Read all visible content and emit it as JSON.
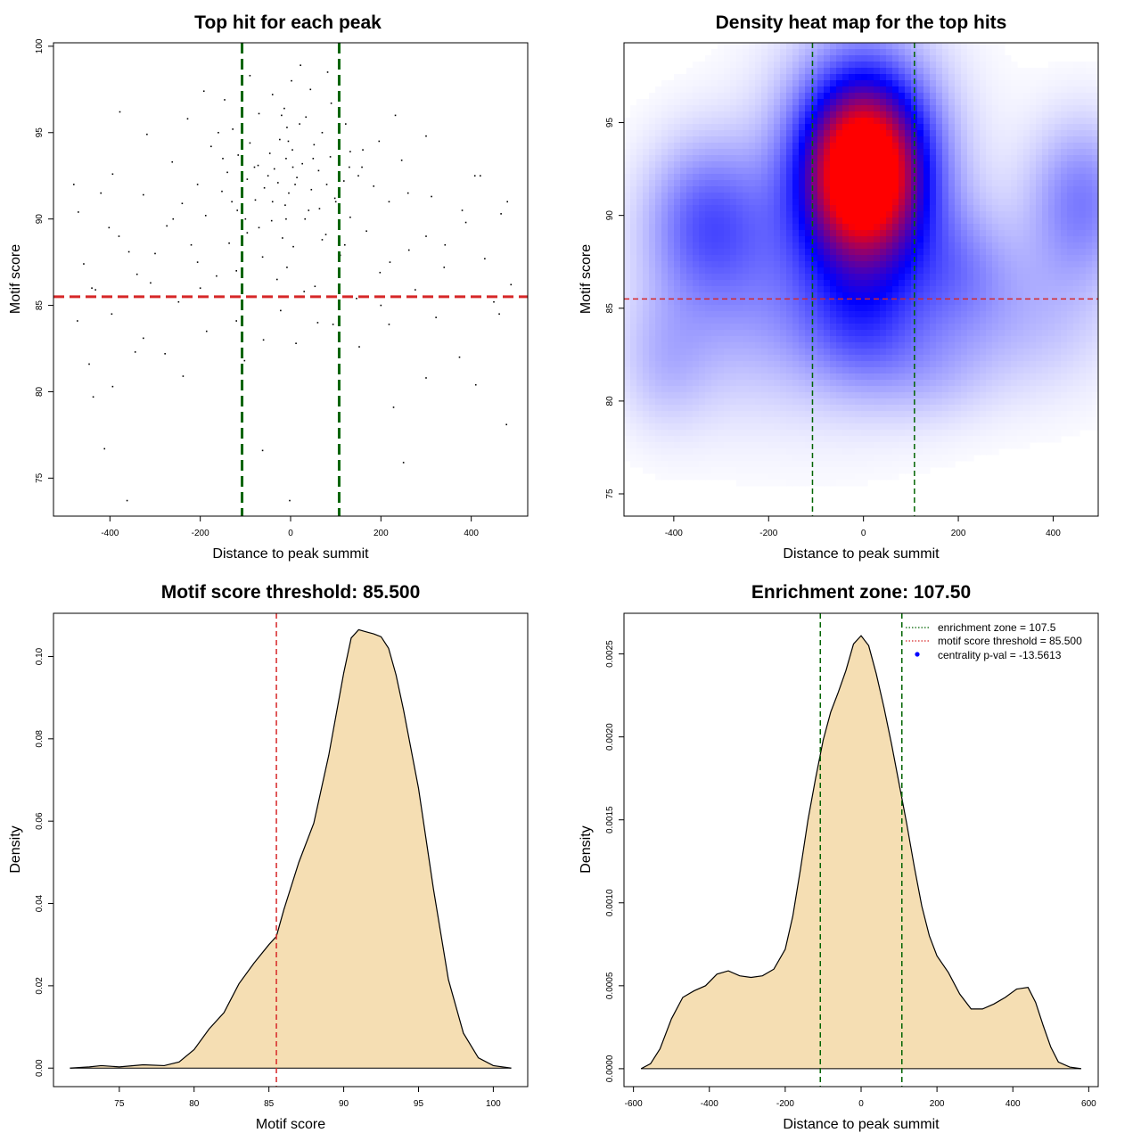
{
  "chart_data": [
    {
      "id": "scatter",
      "type": "scatter",
      "title": "Top hit for each peak",
      "xlabel": "Distance to peak summit",
      "ylabel": "Motif score",
      "xlim": [
        -525,
        525
      ],
      "ylim": [
        72.8,
        100.2
      ],
      "xticks": [
        -400,
        -200,
        0,
        200,
        400
      ],
      "yticks": [
        75,
        80,
        85,
        90,
        95,
        100
      ],
      "point_color": "#000000",
      "vlines": [
        -107.5,
        107.5
      ],
      "vline_color": "#006400",
      "hline": 85.5,
      "hline_color": "#d62728",
      "points": [
        [
          -362,
          73.7
        ],
        [
          -2,
          73.7
        ],
        [
          -412,
          76.7
        ],
        [
          -62,
          76.6
        ],
        [
          478,
          78.1
        ],
        [
          250,
          75.9
        ],
        [
          228,
          79.1
        ],
        [
          -437,
          79.7
        ],
        [
          -394,
          80.3
        ],
        [
          410,
          80.4
        ],
        [
          -238,
          80.9
        ],
        [
          300,
          80.8
        ],
        [
          -446,
          81.6
        ],
        [
          -278,
          82.2
        ],
        [
          152,
          82.6
        ],
        [
          -344,
          82.3
        ],
        [
          -102,
          81.8
        ],
        [
          374,
          82.0
        ],
        [
          -326,
          83.1
        ],
        [
          12,
          82.8
        ],
        [
          -186,
          83.5
        ],
        [
          218,
          83.9
        ],
        [
          -472,
          84.1
        ],
        [
          462,
          84.5
        ],
        [
          -396,
          84.5
        ],
        [
          -120,
          84.1
        ],
        [
          94,
          83.9
        ],
        [
          322,
          84.3
        ],
        [
          -22,
          84.7
        ],
        [
          -248,
          85.2
        ],
        [
          -432,
          85.9
        ],
        [
          146,
          85.4
        ],
        [
          276,
          85.9
        ],
        [
          -82,
          85.5
        ],
        [
          -310,
          86.3
        ],
        [
          54,
          86.1
        ],
        [
          488,
          86.2
        ],
        [
          -164,
          86.7
        ],
        [
          198,
          86.9
        ],
        [
          -8,
          87.2
        ],
        [
          -458,
          87.4
        ],
        [
          -206,
          87.5
        ],
        [
          430,
          87.7
        ],
        [
          -62,
          87.8
        ],
        [
          110,
          87.9
        ],
        [
          -358,
          88.1
        ],
        [
          262,
          88.2
        ],
        [
          6,
          88.4
        ],
        [
          -136,
          88.6
        ],
        [
          342,
          88.5
        ],
        [
          -18,
          88.9
        ],
        [
          78,
          89.1
        ],
        [
          -96,
          89.2
        ],
        [
          168,
          89.3
        ],
        [
          -402,
          89.5
        ],
        [
          -274,
          89.6
        ],
        [
          388,
          89.8
        ],
        [
          -42,
          89.9
        ],
        [
          32,
          90.0
        ],
        [
          -188,
          90.2
        ],
        [
          132,
          90.1
        ],
        [
          -470,
          90.4
        ],
        [
          466,
          90.3
        ],
        [
          -118,
          90.5
        ],
        [
          64,
          90.6
        ],
        [
          -12,
          90.8
        ],
        [
          -240,
          90.9
        ],
        [
          218,
          91.0
        ],
        [
          -78,
          91.1
        ],
        [
          98,
          91.2
        ],
        [
          -326,
          91.4
        ],
        [
          312,
          91.3
        ],
        [
          -4,
          91.5
        ],
        [
          -152,
          91.6
        ],
        [
          46,
          91.7
        ],
        [
          -58,
          91.8
        ],
        [
          184,
          91.9
        ],
        [
          -206,
          92.0
        ],
        [
          -28,
          92.1
        ],
        [
          118,
          92.2
        ],
        [
          -96,
          92.3
        ],
        [
          14,
          92.4
        ],
        [
          -394,
          92.6
        ],
        [
          408,
          92.5
        ],
        [
          -140,
          92.7
        ],
        [
          62,
          92.8
        ],
        [
          -36,
          92.9
        ],
        [
          158,
          93.0
        ],
        [
          -72,
          93.1
        ],
        [
          26,
          93.2
        ],
        [
          -262,
          93.3
        ],
        [
          246,
          93.4
        ],
        [
          -10,
          93.5
        ],
        [
          88,
          93.6
        ],
        [
          -116,
          93.7
        ],
        [
          -46,
          93.8
        ],
        [
          132,
          93.9
        ],
        [
          4,
          94.0
        ],
        [
          -176,
          94.2
        ],
        [
          52,
          94.3
        ],
        [
          -90,
          94.4
        ],
        [
          196,
          94.5
        ],
        [
          -24,
          94.6
        ],
        [
          -318,
          94.9
        ],
        [
          300,
          94.8
        ],
        [
          70,
          95.0
        ],
        [
          -128,
          95.2
        ],
        [
          -8,
          95.3
        ],
        [
          122,
          95.5
        ],
        [
          -228,
          95.8
        ],
        [
          34,
          95.9
        ],
        [
          -70,
          96.1
        ],
        [
          232,
          96.0
        ],
        [
          -14,
          96.4
        ],
        [
          -378,
          96.2
        ],
        [
          90,
          96.7
        ],
        [
          -146,
          96.9
        ],
        [
          -40,
          97.2
        ],
        [
          44,
          97.5
        ],
        [
          -192,
          97.4
        ],
        [
          2,
          98.0
        ],
        [
          -90,
          98.3
        ],
        [
          82,
          98.5
        ],
        [
          22,
          98.9
        ],
        [
          -160,
          95.0
        ],
        [
          160,
          94.0
        ],
        [
          -300,
          88.0
        ],
        [
          300,
          89.0
        ],
        [
          -440,
          86.0
        ],
        [
          450,
          85.2
        ],
        [
          -60,
          83.0
        ],
        [
          60,
          84.0
        ],
        [
          -200,
          86.0
        ],
        [
          200,
          85.0
        ],
        [
          -120,
          87.0
        ],
        [
          120,
          88.5
        ],
        [
          -30,
          86.5
        ],
        [
          30,
          85.8
        ],
        [
          -260,
          90.0
        ],
        [
          260,
          91.5
        ],
        [
          -380,
          89.0
        ],
        [
          380,
          90.5
        ],
        [
          -480,
          92.0
        ],
        [
          480,
          91.0
        ],
        [
          -20,
          96.0
        ],
        [
          20,
          95.5
        ],
        [
          -100,
          90.0
        ],
        [
          100,
          91.0
        ],
        [
          -50,
          92.5
        ],
        [
          50,
          93.5
        ],
        [
          -80,
          93.0
        ],
        [
          80,
          92.0
        ],
        [
          -150,
          93.5
        ],
        [
          150,
          92.5
        ],
        [
          -10,
          90.0
        ],
        [
          10,
          92.0
        ],
        [
          -40,
          91.0
        ],
        [
          40,
          90.5
        ],
        [
          -70,
          89.5
        ],
        [
          70,
          88.8
        ],
        [
          -220,
          88.5
        ],
        [
          220,
          87.5
        ],
        [
          -340,
          86.8
        ],
        [
          340,
          87.2
        ],
        [
          -420,
          91.5
        ],
        [
          420,
          92.5
        ],
        [
          -5,
          94.5
        ],
        [
          5,
          93.0
        ],
        [
          -130,
          91.0
        ],
        [
          130,
          93.0
        ]
      ]
    },
    {
      "id": "heatmap",
      "type": "heatmap",
      "title": "Density heat map for the top hits",
      "xlabel": "Distance to peak summit",
      "ylabel": "Motif score",
      "xlim": [
        -505,
        495
      ],
      "ylim": [
        73.8,
        99.3
      ],
      "xticks": [
        -400,
        -200,
        0,
        200,
        400
      ],
      "yticks": [
        75,
        80,
        85,
        90,
        95
      ],
      "colors": [
        "#ffffff",
        "#0000ff",
        "#ff0000"
      ],
      "blobs": [
        {
          "x": 0,
          "y": 92.5,
          "sx": 85,
          "sy": 3.3,
          "w": 1.0
        },
        {
          "x": 0,
          "y": 91.0,
          "sx": 130,
          "sy": 5.5,
          "w": 0.35
        },
        {
          "x": -330,
          "y": 89.8,
          "sx": 90,
          "sy": 3.0,
          "w": 0.28
        },
        {
          "x": 460,
          "y": 90.8,
          "sx": 80,
          "sy": 3.0,
          "w": 0.25
        },
        {
          "x": 200,
          "y": 87.0,
          "sx": 80,
          "sy": 2.5,
          "w": 0.15
        },
        {
          "x": -250,
          "y": 85.0,
          "sx": 150,
          "sy": 4.0,
          "w": 0.14
        },
        {
          "x": 0,
          "y": 84.0,
          "sx": 90,
          "sy": 2.5,
          "w": 0.18
        },
        {
          "x": 350,
          "y": 84.5,
          "sx": 130,
          "sy": 3.0,
          "w": 0.12
        },
        {
          "x": -420,
          "y": 82.0,
          "sx": 70,
          "sy": 2.5,
          "w": 0.1
        },
        {
          "x": 150,
          "y": 81.5,
          "sx": 90,
          "sy": 2.0,
          "w": 0.08
        }
      ],
      "vlines": [
        -107.5,
        107.5
      ],
      "vline_color": "#006400",
      "hline": 85.5,
      "hline_color": "#d62728"
    },
    {
      "id": "score_density",
      "type": "area",
      "title": "Motif score threshold: 85.500",
      "xlabel": "Motif score",
      "ylabel": "Density",
      "xlim": [
        70.6,
        102.3
      ],
      "ylim": [
        -0.0045,
        0.1105
      ],
      "xticks": [
        75,
        80,
        85,
        90,
        95,
        100
      ],
      "yticks": [
        0.0,
        0.02,
        0.04,
        0.06,
        0.08,
        0.1
      ],
      "ytick_labels": [
        "0.00",
        "0.02",
        "0.04",
        "0.06",
        "0.08",
        "0.10"
      ],
      "fill_color": "#f5deb3",
      "vline": 85.5,
      "vline_color": "#d62728",
      "x": [
        71.7,
        73.0,
        73.8,
        75.0,
        76.6,
        78.0,
        79.0,
        80.0,
        81.0,
        82.0,
        83.0,
        84.0,
        85.0,
        85.5,
        86.0,
        87.0,
        88.0,
        89.0,
        90.0,
        90.5,
        91.0,
        91.5,
        92.0,
        92.5,
        93.0,
        93.5,
        94.0,
        95.0,
        96.0,
        97.0,
        98.0,
        99.0,
        100.0,
        101.2
      ],
      "y": [
        0.0,
        0.0003,
        0.0006,
        0.0003,
        0.0008,
        0.0006,
        0.0015,
        0.0045,
        0.0095,
        0.0135,
        0.0205,
        0.0255,
        0.03,
        0.032,
        0.0385,
        0.05,
        0.0595,
        0.076,
        0.096,
        0.1045,
        0.1065,
        0.106,
        0.1055,
        0.1048,
        0.102,
        0.0955,
        0.087,
        0.068,
        0.0435,
        0.0215,
        0.0085,
        0.0025,
        0.0006,
        0.0
      ]
    },
    {
      "id": "distance_density",
      "type": "area",
      "title": "Enrichment zone: 107.50",
      "xlabel": "Distance to peak summit",
      "ylabel": "Density",
      "xlim": [
        -625,
        625
      ],
      "ylim": [
        -0.000108,
        0.002745
      ],
      "xticks": [
        -600,
        -400,
        -200,
        0,
        200,
        400,
        600
      ],
      "yticks": [
        0.0,
        0.0005,
        0.001,
        0.0015,
        0.002,
        0.0025
      ],
      "ytick_labels": [
        "0.0000",
        "0.0005",
        "0.0010",
        "0.0015",
        "0.0020",
        "0.0025"
      ],
      "fill_color": "#f5deb3",
      "vlines": [
        -107.5,
        107.5
      ],
      "vline_color": "#006400",
      "x": [
        -580,
        -555,
        -530,
        -500,
        -470,
        -440,
        -410,
        -380,
        -350,
        -320,
        -290,
        -260,
        -230,
        -200,
        -180,
        -160,
        -140,
        -120,
        -100,
        -80,
        -60,
        -40,
        -20,
        0,
        20,
        40,
        60,
        80,
        100,
        120,
        140,
        160,
        180,
        200,
        230,
        260,
        290,
        320,
        350,
        380,
        410,
        440,
        460,
        480,
        500,
        520,
        550,
        580
      ],
      "y": [
        0.0,
        3e-05,
        0.00012,
        0.0003,
        0.00043,
        0.00047,
        0.0005,
        0.00057,
        0.00059,
        0.00056,
        0.00055,
        0.00056,
        0.0006,
        0.00072,
        0.00092,
        0.0012,
        0.0015,
        0.00175,
        0.00198,
        0.00215,
        0.00227,
        0.0024,
        0.00256,
        0.00261,
        0.00255,
        0.00238,
        0.00218,
        0.00196,
        0.00172,
        0.00148,
        0.00122,
        0.00098,
        0.0008,
        0.00068,
        0.00058,
        0.00045,
        0.00036,
        0.00036,
        0.00039,
        0.00043,
        0.00048,
        0.00049,
        0.0004,
        0.00026,
        0.00013,
        4e-05,
        1e-05,
        0.0
      ]
    }
  ],
  "legend": {
    "items": [
      {
        "label": "enrichment zone = 107.5",
        "color": "#006400",
        "kind": "line"
      },
      {
        "label": "motif score threshold = 85.500",
        "color": "#d62728",
        "kind": "line"
      },
      {
        "label": "centrality p-val = -13.5613",
        "color": "#0000ff",
        "kind": "point"
      }
    ]
  }
}
